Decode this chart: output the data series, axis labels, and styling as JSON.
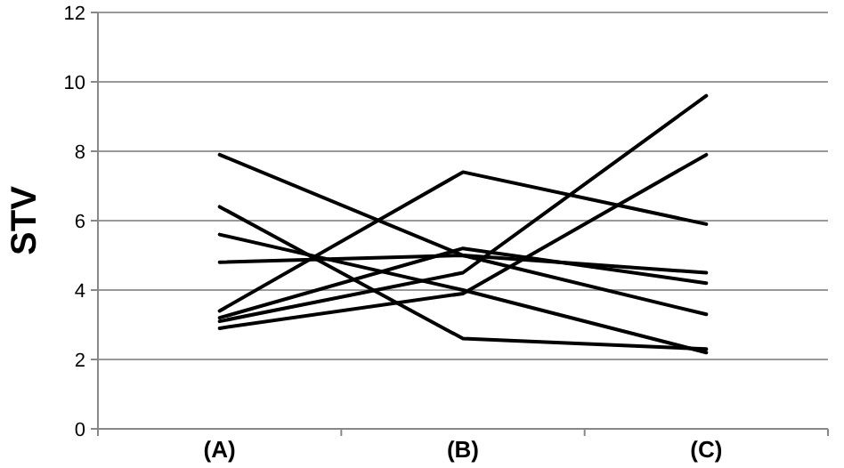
{
  "chart_data": {
    "type": "line",
    "ylabel": "STV",
    "categories": [
      "(A)",
      "(B)",
      "(C)"
    ],
    "series": [
      {
        "color": "#000000",
        "values": [
          7.9,
          5.0,
          3.3
        ]
      },
      {
        "color": "#000000",
        "values": [
          3.4,
          7.4,
          5.9
        ]
      },
      {
        "color": "#000000",
        "values": [
          4.8,
          5.0,
          4.5
        ]
      },
      {
        "color": "#000000",
        "values": [
          3.2,
          5.2,
          4.2
        ]
      },
      {
        "color": "#000000",
        "values": [
          3.1,
          4.5,
          9.6
        ]
      },
      {
        "color": "#000000",
        "values": [
          6.4,
          2.6,
          2.3
        ]
      },
      {
        "color": "#000000",
        "values": [
          5.6,
          4.0,
          2.2
        ]
      },
      {
        "color": "#000000",
        "values": [
          2.9,
          3.9,
          7.9
        ]
      }
    ],
    "ylim": [
      0,
      12
    ],
    "yticks": [
      0,
      2,
      4,
      6,
      8,
      10,
      12
    ],
    "grid": "y",
    "marker": "none",
    "line_style": "solid"
  }
}
